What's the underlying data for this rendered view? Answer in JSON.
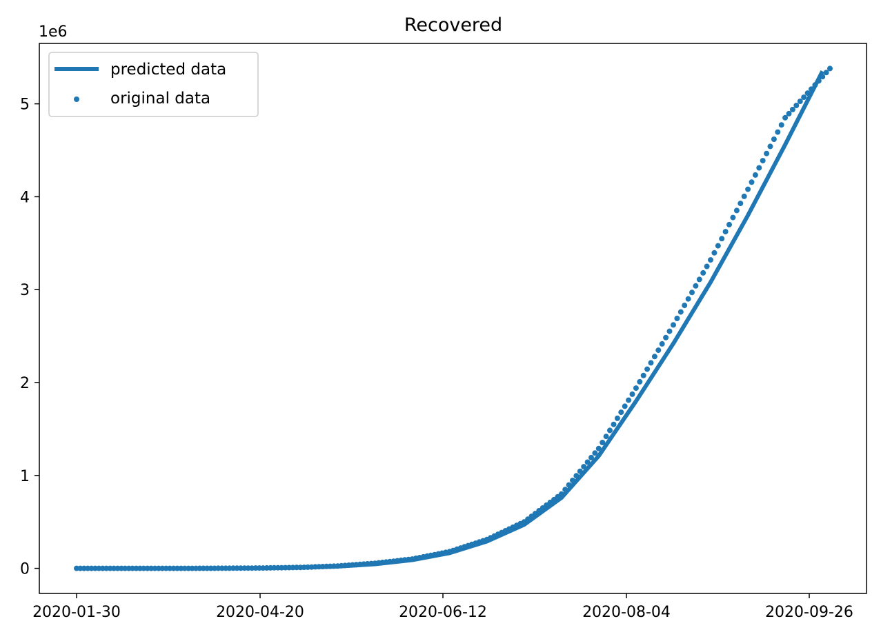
{
  "chart_data": {
    "type": "line",
    "title": "Recovered",
    "xlabel": "",
    "ylabel": "",
    "y_offset_label": "1e6",
    "x_tick_labels": [
      "2020-01-30",
      "2020-04-20",
      "2020-06-12",
      "2020-08-04",
      "2020-09-26"
    ],
    "y_tick_labels": [
      "0",
      "1",
      "2",
      "3",
      "4",
      "5"
    ],
    "ylim": [
      -270000,
      5650000
    ],
    "grid": false,
    "legend_placement": "top-left",
    "color": "#1f77b4",
    "series": [
      {
        "name": "predicted data",
        "style": "line",
        "points": [
          [
            0,
            0
          ],
          [
            20,
            0
          ],
          [
            40,
            0
          ],
          [
            60,
            0
          ],
          [
            80,
            1000
          ],
          [
            100,
            3000
          ],
          [
            120,
            8000
          ],
          [
            140,
            20000
          ],
          [
            160,
            45000
          ],
          [
            180,
            90000
          ],
          [
            200,
            165000
          ],
          [
            220,
            290000
          ],
          [
            240,
            470000
          ],
          [
            260,
            760000
          ],
          [
            280,
            1210000
          ],
          [
            300,
            1800000
          ],
          [
            320,
            2420000
          ],
          [
            340,
            3080000
          ],
          [
            360,
            3800000
          ],
          [
            380,
            4560000
          ],
          [
            400,
            5350000
          ]
        ]
      },
      {
        "name": "original data",
        "style": "scatter",
        "points": [
          [
            0,
            0
          ],
          [
            20,
            0
          ],
          [
            40,
            0
          ],
          [
            60,
            0
          ],
          [
            80,
            1500
          ],
          [
            100,
            4000
          ],
          [
            120,
            10000
          ],
          [
            140,
            25000
          ],
          [
            160,
            55000
          ],
          [
            180,
            100000
          ],
          [
            200,
            180000
          ],
          [
            220,
            310000
          ],
          [
            240,
            500000
          ],
          [
            260,
            800000
          ],
          [
            280,
            1290000
          ],
          [
            300,
            1940000
          ],
          [
            320,
            2620000
          ],
          [
            340,
            3320000
          ],
          [
            360,
            4080000
          ],
          [
            380,
            4850000
          ],
          [
            404,
            5380000
          ]
        ]
      }
    ]
  }
}
